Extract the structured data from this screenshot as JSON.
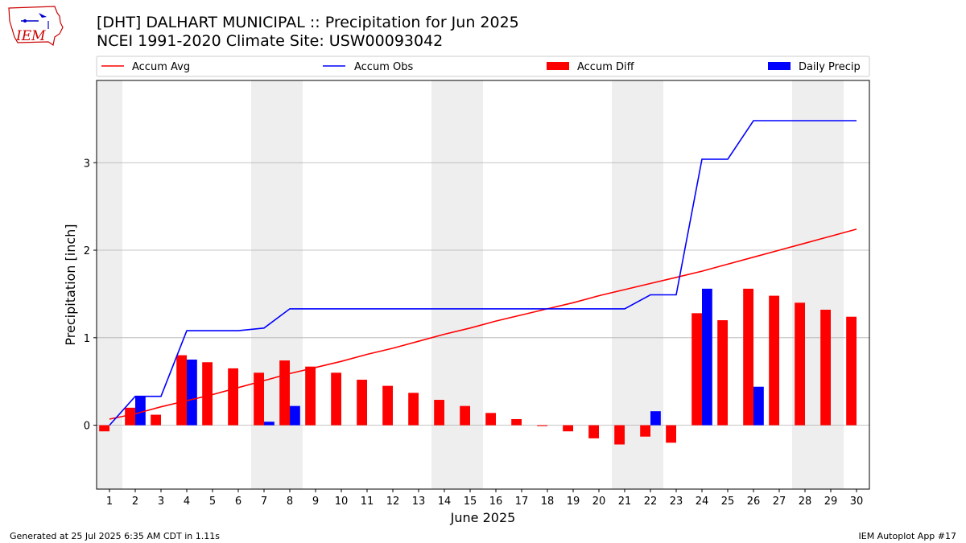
{
  "header": {
    "title_line1": "[DHT] DALHART MUNICIPAL :: Precipitation for Jun 2025",
    "title_line2": "NCEI 1991-2020 Climate Site: USW00093042"
  },
  "logo": {
    "text": "IEM"
  },
  "footer": {
    "generated": "Generated at 25 Jul 2025 6:35 AM CDT in 1.11s",
    "app": "IEM Autoplot App #17"
  },
  "colors": {
    "accum_avg": "#ff0000",
    "accum_obs": "#0000ff",
    "accum_diff": "#ff0000",
    "daily_precip": "#0000ff",
    "weekend_shade": "#eeeeee",
    "grid": "#b0b0b0"
  },
  "chart_data": {
    "type": "bar",
    "xlabel": "June 2025",
    "ylabel": "Precipitation [inch]",
    "xlim": [
      0.5,
      30.5
    ],
    "ylim": [
      -0.73,
      3.94
    ],
    "yticks": [
      0,
      1,
      2,
      3
    ],
    "grid": "y",
    "legend_placement": "top",
    "categories": [
      "1",
      "2",
      "3",
      "4",
      "5",
      "6",
      "7",
      "8",
      "9",
      "10",
      "11",
      "12",
      "13",
      "14",
      "15",
      "16",
      "17",
      "18",
      "19",
      "20",
      "21",
      "22",
      "23",
      "24",
      "25",
      "26",
      "27",
      "28",
      "29",
      "30"
    ],
    "shaded_days": [
      [
        0.5,
        1.5
      ],
      [
        6.5,
        8.5
      ],
      [
        13.5,
        15.5
      ],
      [
        20.5,
        22.5
      ],
      [
        27.5,
        29.5
      ]
    ],
    "series": [
      {
        "name": "Accum Avg",
        "kind": "line",
        "values": [
          0.07,
          0.13,
          0.21,
          0.28,
          0.35,
          0.43,
          0.51,
          0.59,
          0.66,
          0.73,
          0.81,
          0.88,
          0.96,
          1.04,
          1.11,
          1.19,
          1.26,
          1.33,
          1.4,
          1.48,
          1.55,
          1.62,
          1.69,
          1.76,
          1.84,
          1.92,
          2.0,
          2.08,
          2.16,
          2.24
        ]
      },
      {
        "name": "Accum Obs",
        "kind": "line",
        "values": [
          0.0,
          0.33,
          0.33,
          1.08,
          1.08,
          1.08,
          1.11,
          1.33,
          1.33,
          1.33,
          1.33,
          1.33,
          1.33,
          1.33,
          1.33,
          1.33,
          1.33,
          1.33,
          1.33,
          1.33,
          1.33,
          1.49,
          1.49,
          3.04,
          3.04,
          3.48,
          3.48,
          3.48,
          3.48,
          3.48
        ]
      },
      {
        "name": "Accum Diff",
        "kind": "bar",
        "values": [
          -0.07,
          0.2,
          0.12,
          0.8,
          0.72,
          0.65,
          0.6,
          0.74,
          0.67,
          0.6,
          0.52,
          0.45,
          0.37,
          0.29,
          0.22,
          0.14,
          0.07,
          -0.01,
          -0.07,
          -0.15,
          -0.22,
          -0.13,
          -0.2,
          1.28,
          1.2,
          1.56,
          1.48,
          1.4,
          1.32,
          1.24
        ]
      },
      {
        "name": "Daily Precip",
        "kind": "bar",
        "values": [
          0.0,
          0.33,
          0.0,
          0.75,
          0.0,
          0.0,
          0.04,
          0.22,
          0.0,
          0.0,
          0.0,
          0.0,
          0.0,
          0.0,
          0.0,
          0.0,
          0.0,
          0.0,
          0.0,
          0.0,
          0.0,
          0.16,
          0.0,
          1.56,
          0.0,
          0.44,
          0.0,
          0.0,
          0.0,
          0.0
        ]
      }
    ]
  }
}
